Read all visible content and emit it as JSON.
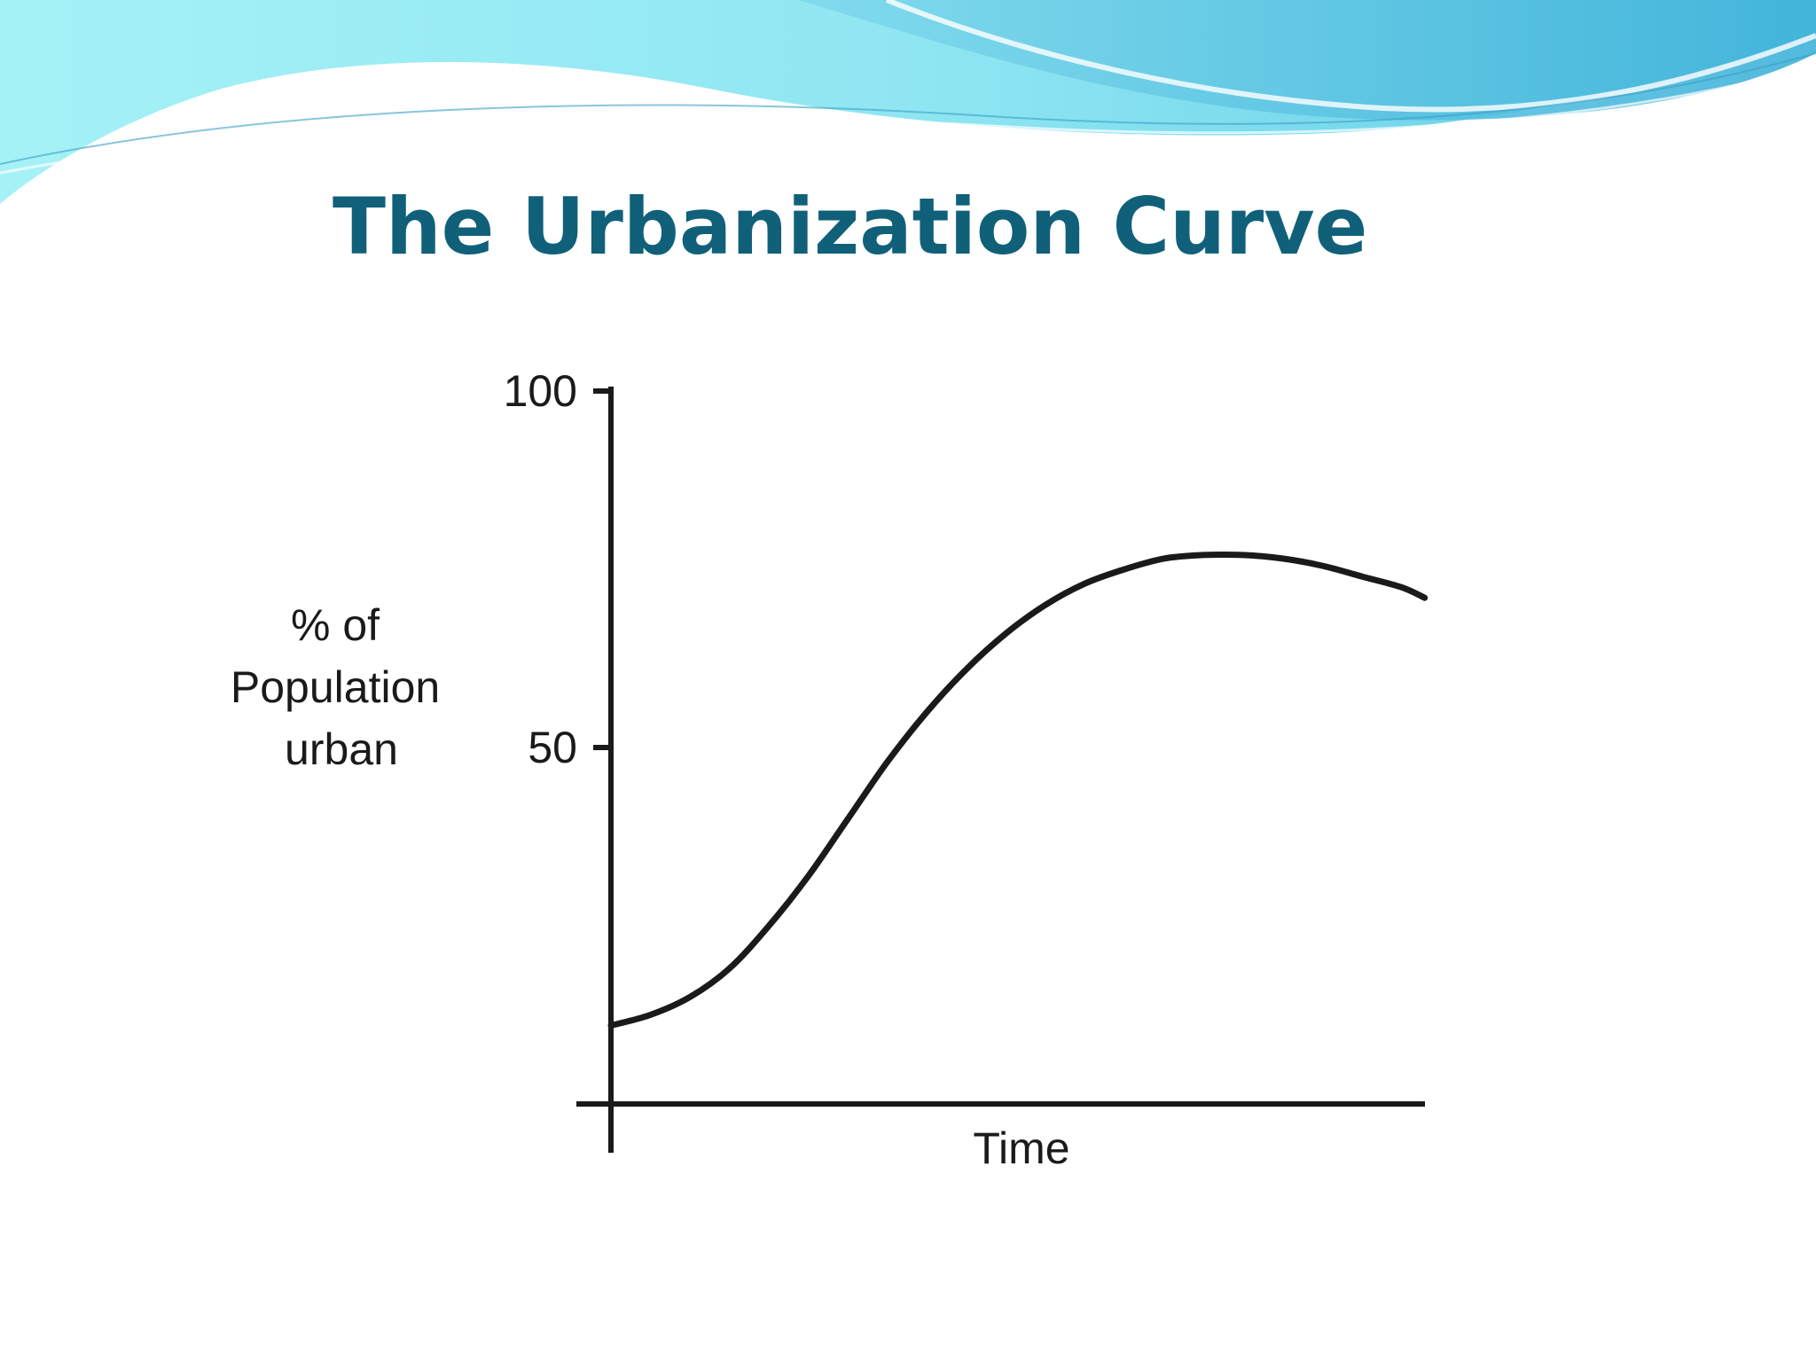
{
  "slide": {
    "title": "The Urbanization Curve"
  },
  "colors": {
    "title": "#10607a",
    "curve": "#1a1a1a",
    "axis": "#1a1a1a",
    "wave_light": "#9eeef4",
    "wave_mid": "#6fd4ea",
    "wave_dark": "#49b7d8"
  },
  "chart_data": {
    "type": "line",
    "title": "",
    "xlabel": "Time",
    "ylabel_lines": [
      "% of",
      "Population",
      "urban"
    ],
    "yticks": [
      {
        "value": 50,
        "label": "50"
      },
      {
        "value": 100,
        "label": "100"
      }
    ],
    "ylim": [
      0,
      100
    ],
    "xlim": [
      0,
      100
    ],
    "grid": false,
    "legend": "none",
    "series": [
      {
        "x": [
          0,
          5,
          10,
          15,
          20,
          25,
          30,
          35,
          40,
          45,
          50,
          55,
          60,
          65,
          70,
          75,
          80,
          85,
          90,
          95,
          100,
          103
        ],
        "values": [
          11,
          12.5,
          15,
          19,
          25,
          32,
          40,
          48,
          55,
          61,
          66,
          70,
          73,
          75,
          76.5,
          77,
          77,
          76.5,
          75.5,
          74,
          72.5,
          71
        ]
      }
    ]
  }
}
